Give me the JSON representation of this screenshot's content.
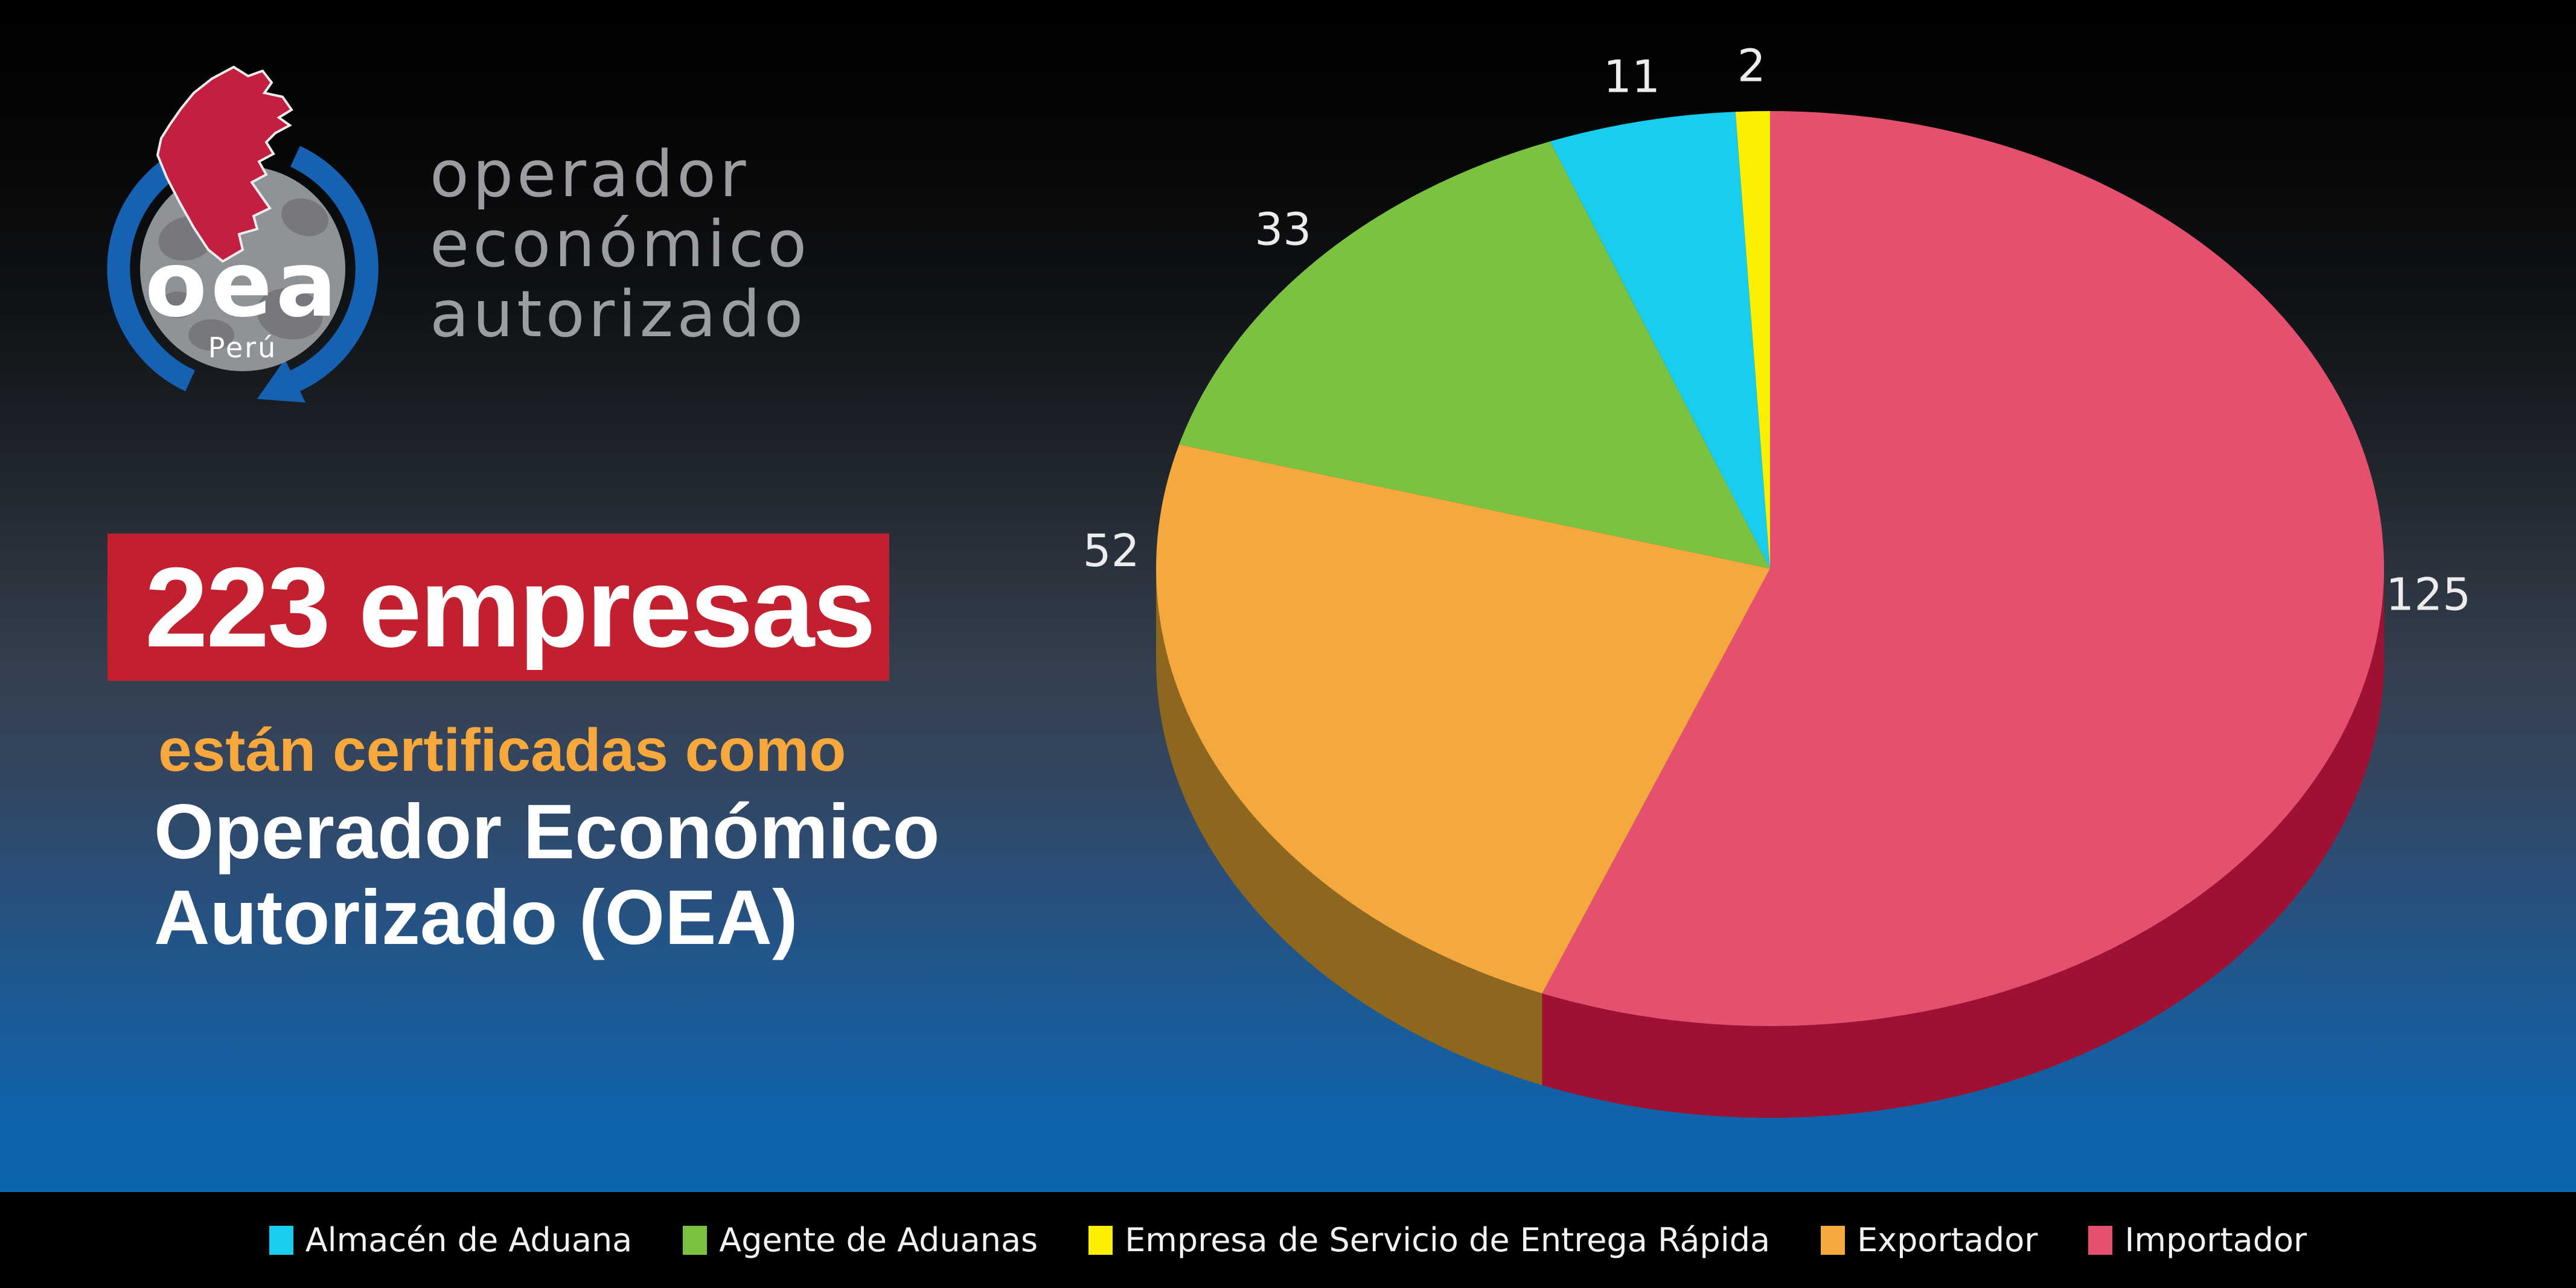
{
  "brand": {
    "logo_text": "oea",
    "logo_subtext": "Perú",
    "wordmark_lines": [
      "operador",
      "económico",
      "autorizado"
    ]
  },
  "headline": {
    "badge_text": "223 empresas",
    "subtitle": "están certificadas como",
    "title_lines": [
      "Operador Económico",
      "Autorizado (OEA)"
    ]
  },
  "chart_data": {
    "type": "pie",
    "style": "3d",
    "title": "",
    "total": 223,
    "unit": "empresas",
    "start_angle_deg": 0,
    "clockwise": true,
    "value_labels_position": "outside",
    "legend_position": "bottom",
    "slices": [
      {
        "label": "Importador",
        "value": 125,
        "color": "#e5506e",
        "side_color": "#9e1132"
      },
      {
        "label": "Exportador",
        "value": 52,
        "color": "#f5a83d",
        "side_color": "#8c671d"
      },
      {
        "label": "Agente de Aduanas",
        "value": 33,
        "color": "#7cc241",
        "side_color": "#527f1f"
      },
      {
        "label": "Almacén de Aduana",
        "value": 11,
        "color": "#18cdee",
        "side_color": "#0e86a0"
      },
      {
        "label": "Empresa de Servicio de Entrega Rápida",
        "value": 2,
        "color": "#fcf000",
        "side_color": "#a39a06"
      }
    ],
    "legend_order": [
      3,
      2,
      4,
      1,
      0
    ]
  },
  "colors": {
    "badge_bg": "#c2202f",
    "badge_text": "#ffffff",
    "subtitle_text": "#f7a83c",
    "title_text": "#ffffff",
    "wordmark_text": "#9b9da0",
    "pie_label_text": "#ececec",
    "legend_bar_bg": "#000000",
    "legend_text": "#f2f2f2",
    "arrow_blue": "#1661b2",
    "map_red": "#c31f40",
    "map_outline": "#ececec",
    "globe_gray": "#8f9296",
    "globe_land_gray": "#747478"
  }
}
